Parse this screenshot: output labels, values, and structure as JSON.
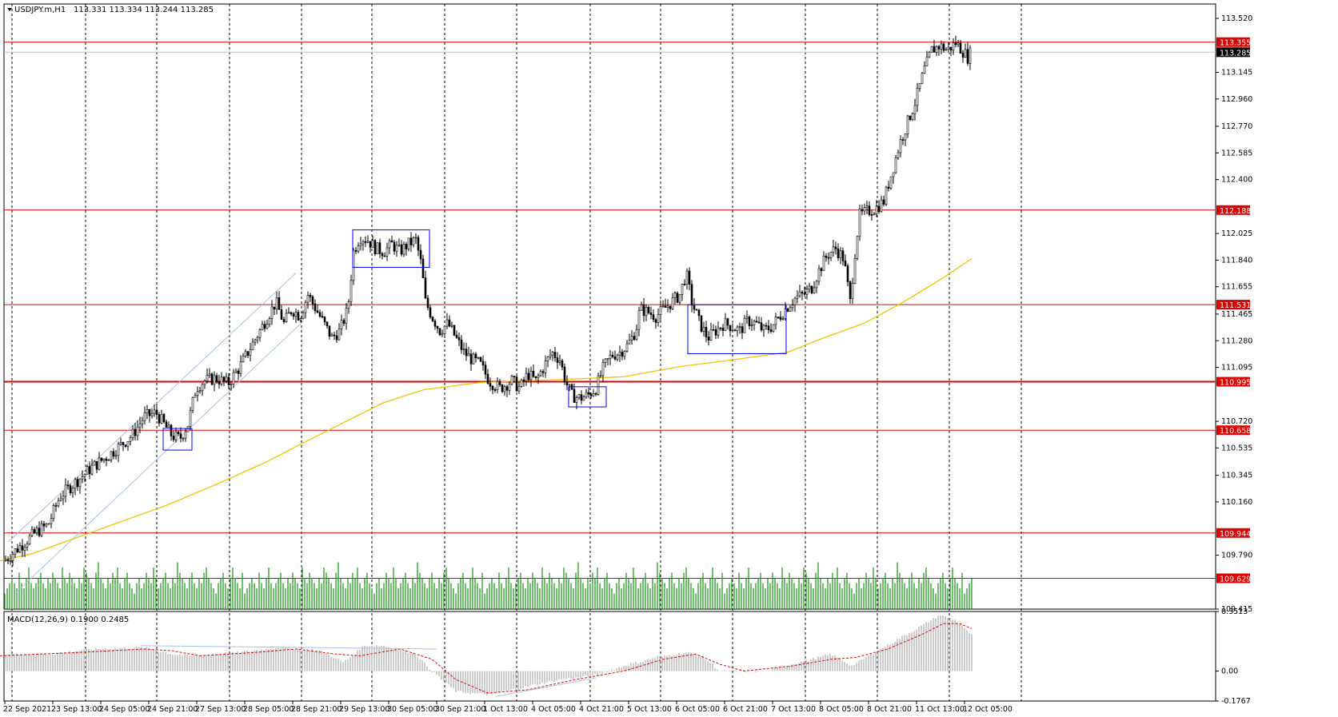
{
  "header": {
    "symbol": "USDJPY.m,H1",
    "ohlc": "113.331 113.334 113.244 113.285"
  },
  "subwindow": {
    "label": "MACD(12,26,9) 0.1900 0.2485"
  },
  "colors": {
    "bull_candle": "#000000",
    "bear_candle": "#000000",
    "level_line": "#e00000",
    "ma_line": "#f2c200",
    "volume": "#1f9b1f",
    "box": "#0000ff",
    "channel": "#a8bfe6",
    "macd_hist": "#c0c0c0",
    "macd_signal": "#e00000"
  },
  "chart_data": [
    {
      "type": "candlestick",
      "symbol": "USDJPY.m",
      "timeframe": "H1",
      "ylim": [
        109.415,
        113.62
      ],
      "price_ticks": [
        "113.520",
        "113.145",
        "112.960",
        "112.770",
        "112.585",
        "112.400",
        "112.025",
        "111.840",
        "111.655",
        "111.465",
        "111.280",
        "111.095",
        "110.720",
        "110.535",
        "110.345",
        "110.160",
        "109.790",
        "109.415"
      ],
      "time_ticks": [
        "22 Sep 2021",
        "23 Sep 13:00",
        "24 Sep 05:00",
        "24 Sep 21:00",
        "27 Sep 13:00",
        "28 Sep 05:00",
        "28 Sep 21:00",
        "29 Sep 13:00",
        "30 Sep 05:00",
        "30 Sep 21:00",
        "1 Oct 13:00",
        "4 Oct 05:00",
        "4 Oct 21:00",
        "5 Oct 13:00",
        "6 Oct 05:00",
        "6 Oct 21:00",
        "7 Oct 13:00",
        "8 Oct 05:00",
        "8 Oct 21:00",
        "11 Oct 13:00",
        "12 Oct 05:00"
      ],
      "horizontal_levels": [
        "113.355",
        "112.188",
        "111.531",
        "110.995",
        "110.658",
        "109.944",
        "109.629"
      ],
      "current_price": "113.285",
      "moving_average_points": [
        [
          0,
          109.75
        ],
        [
          40,
          109.8
        ],
        [
          100,
          109.92
        ],
        [
          150,
          110.02
        ],
        [
          210,
          110.14
        ],
        [
          270,
          110.28
        ],
        [
          330,
          110.43
        ],
        [
          390,
          110.6
        ],
        [
          440,
          110.74
        ],
        [
          480,
          110.85
        ],
        [
          530,
          110.94
        ],
        [
          600,
          110.99
        ],
        [
          700,
          111.01
        ],
        [
          780,
          111.03
        ],
        [
          850,
          111.1
        ],
        [
          920,
          111.15
        ],
        [
          985,
          111.2
        ],
        [
          1030,
          111.3
        ],
        [
          1080,
          111.4
        ],
        [
          1130,
          111.55
        ],
        [
          1180,
          111.72
        ],
        [
          1215,
          111.85
        ]
      ],
      "close_path_points": [
        [
          5,
          109.75
        ],
        [
          25,
          109.85
        ],
        [
          45,
          109.95
        ],
        [
          60,
          110.0
        ],
        [
          75,
          110.2
        ],
        [
          95,
          110.3
        ],
        [
          115,
          110.4
        ],
        [
          135,
          110.48
        ],
        [
          150,
          110.55
        ],
        [
          165,
          110.62
        ],
        [
          180,
          110.75
        ],
        [
          195,
          110.78
        ],
        [
          205,
          110.7
        ],
        [
          215,
          110.62
        ],
        [
          225,
          110.6
        ],
        [
          235,
          110.7
        ],
        [
          245,
          110.95
        ],
        [
          255,
          111.0
        ],
        [
          270,
          111.02
        ],
        [
          285,
          110.98
        ],
        [
          300,
          111.1
        ],
        [
          315,
          111.25
        ],
        [
          330,
          111.4
        ],
        [
          345,
          111.55
        ],
        [
          355,
          111.4
        ],
        [
          365,
          111.5
        ],
        [
          375,
          111.45
        ],
        [
          385,
          111.6
        ],
        [
          395,
          111.5
        ],
        [
          405,
          111.4
        ],
        [
          415,
          111.3
        ],
        [
          425,
          111.35
        ],
        [
          435,
          111.5
        ],
        [
          442,
          111.9
        ],
        [
          450,
          112.0
        ],
        [
          460,
          111.98
        ],
        [
          470,
          111.92
        ],
        [
          480,
          111.9
        ],
        [
          490,
          111.95
        ],
        [
          500,
          111.9
        ],
        [
          510,
          111.95
        ],
        [
          520,
          111.98
        ],
        [
          527,
          111.8
        ],
        [
          532,
          111.55
        ],
        [
          540,
          111.45
        ],
        [
          550,
          111.35
        ],
        [
          560,
          111.4
        ],
        [
          570,
          111.3
        ],
        [
          580,
          111.2
        ],
        [
          590,
          111.15
        ],
        [
          600,
          111.12
        ],
        [
          612,
          111.0
        ],
        [
          625,
          110.95
        ],
        [
          640,
          111.0
        ],
        [
          650,
          110.95
        ],
        [
          660,
          111.05
        ],
        [
          670,
          111.0
        ],
        [
          680,
          111.1
        ],
        [
          690,
          111.2
        ],
        [
          700,
          111.15
        ],
        [
          707,
          111.0
        ],
        [
          715,
          110.9
        ],
        [
          725,
          110.88
        ],
        [
          735,
          110.9
        ],
        [
          745,
          110.95
        ],
        [
          755,
          111.1
        ],
        [
          765,
          111.18
        ],
        [
          775,
          111.2
        ],
        [
          785,
          111.25
        ],
        [
          795,
          111.35
        ],
        [
          800,
          111.5
        ],
        [
          810,
          111.48
        ],
        [
          820,
          111.45
        ],
        [
          830,
          111.5
        ],
        [
          840,
          111.55
        ],
        [
          850,
          111.6
        ],
        [
          858,
          111.75
        ],
        [
          865,
          111.55
        ],
        [
          875,
          111.4
        ],
        [
          885,
          111.3
        ],
        [
          895,
          111.35
        ],
        [
          905,
          111.4
        ],
        [
          915,
          111.38
        ],
        [
          925,
          111.35
        ],
        [
          935,
          111.42
        ],
        [
          945,
          111.4
        ],
        [
          955,
          111.35
        ],
        [
          965,
          111.38
        ],
        [
          975,
          111.45
        ],
        [
          985,
          111.52
        ],
        [
          995,
          111.58
        ],
        [
          1005,
          111.6
        ],
        [
          1015,
          111.65
        ],
        [
          1025,
          111.78
        ],
        [
          1035,
          111.88
        ],
        [
          1045,
          111.92
        ],
        [
          1055,
          111.85
        ],
        [
          1063,
          111.55
        ],
        [
          1070,
          111.95
        ],
        [
          1075,
          112.15
        ],
        [
          1085,
          112.18
        ],
        [
          1095,
          112.2
        ],
        [
          1105,
          112.25
        ],
        [
          1115,
          112.45
        ],
        [
          1125,
          112.65
        ],
        [
          1135,
          112.8
        ],
        [
          1145,
          112.95
        ],
        [
          1155,
          113.15
        ],
        [
          1165,
          113.3
        ],
        [
          1175,
          113.33
        ],
        [
          1185,
          113.3
        ],
        [
          1195,
          113.35
        ],
        [
          1203,
          113.3
        ],
        [
          1210,
          113.25
        ],
        [
          1214,
          113.285
        ]
      ],
      "volume_pattern": [
        3,
        4,
        5,
        6,
        5,
        4,
        7,
        5,
        4,
        6,
        8,
        5,
        4,
        5,
        6,
        7,
        5,
        4,
        6,
        5,
        7,
        6,
        5,
        4,
        8,
        6,
        5,
        7,
        6,
        5,
        4,
        6,
        5,
        8,
        7,
        6,
        5,
        4,
        7,
        9,
        6,
        5,
        4,
        6,
        5,
        7,
        6,
        8,
        5,
        4,
        6,
        7,
        5,
        4,
        3,
        5,
        6,
        4,
        5,
        7,
        6,
        5,
        8,
        6,
        4,
        5,
        6,
        7,
        5,
        4,
        6,
        5,
        9,
        7,
        6,
        5,
        4,
        6,
        7,
        5,
        4,
        6,
        5,
        7,
        8,
        6,
        5,
        4,
        3,
        5,
        6,
        7,
        5,
        4,
        6,
        8,
        6,
        5,
        4,
        7
      ],
      "macd": {
        "name": "MACD(12,26,9)",
        "value": "0.1900",
        "signal": "0.2485",
        "ylim": [
          -0.1767,
          0.3513
        ],
        "ticks": [
          "0.3513",
          "0.00",
          "-0.1767"
        ],
        "hist_points": [
          [
            0,
            0.1
          ],
          [
            60,
            0.1
          ],
          [
            120,
            0.13
          ],
          [
            180,
            0.14
          ],
          [
            215,
            0.1
          ],
          [
            240,
            0.09
          ],
          [
            300,
            0.11
          ],
          [
            350,
            0.14
          ],
          [
            400,
            0.12
          ],
          [
            430,
            0.05
          ],
          [
            455,
            0.15
          ],
          [
            480,
            0.15
          ],
          [
            520,
            0.1
          ],
          [
            540,
            0.0
          ],
          [
            570,
            -0.12
          ],
          [
            610,
            -0.14
          ],
          [
            650,
            -0.1
          ],
          [
            700,
            -0.05
          ],
          [
            740,
            -0.03
          ],
          [
            780,
            0.03
          ],
          [
            820,
            0.08
          ],
          [
            860,
            0.11
          ],
          [
            880,
            0.08
          ],
          [
            900,
            0.0
          ],
          [
            960,
            0.0
          ],
          [
            990,
            0.04
          ],
          [
            1040,
            0.1
          ],
          [
            1065,
            0.03
          ],
          [
            1090,
            0.1
          ],
          [
            1120,
            0.18
          ],
          [
            1150,
            0.26
          ],
          [
            1175,
            0.33
          ],
          [
            1195,
            0.3
          ],
          [
            1215,
            0.21
          ]
        ],
        "signal_points": [
          [
            0,
            0.09
          ],
          [
            100,
            0.11
          ],
          [
            180,
            0.13
          ],
          [
            215,
            0.12
          ],
          [
            250,
            0.09
          ],
          [
            320,
            0.11
          ],
          [
            370,
            0.13
          ],
          [
            420,
            0.1
          ],
          [
            450,
            0.09
          ],
          [
            500,
            0.13
          ],
          [
            540,
            0.07
          ],
          [
            570,
            -0.05
          ],
          [
            610,
            -0.13
          ],
          [
            660,
            -0.11
          ],
          [
            720,
            -0.05
          ],
          [
            780,
            0.0
          ],
          [
            830,
            0.07
          ],
          [
            870,
            0.1
          ],
          [
            900,
            0.04
          ],
          [
            930,
            0.0
          ],
          [
            990,
            0.03
          ],
          [
            1040,
            0.07
          ],
          [
            1070,
            0.08
          ],
          [
            1110,
            0.13
          ],
          [
            1150,
            0.21
          ],
          [
            1180,
            0.28
          ],
          [
            1200,
            0.28
          ],
          [
            1215,
            0.25
          ]
        ]
      }
    }
  ]
}
